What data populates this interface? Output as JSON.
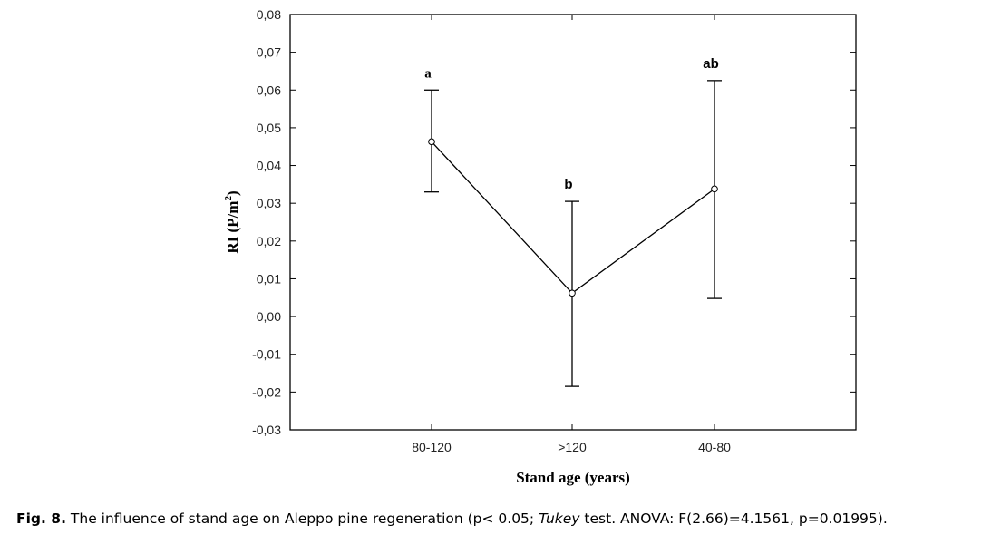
{
  "chart_data": {
    "type": "line",
    "title": "",
    "xlabel": "Stand age (years)",
    "ylabel": "RI (P/m",
    "ylabel_sup": "2",
    "ylabel_end": ")",
    "categories": [
      "80-120",
      ">120",
      "40-80"
    ],
    "values": [
      0.0463,
      0.0062,
      0.0338
    ],
    "error_low": [
      0.033,
      -0.0185,
      0.0048
    ],
    "error_high": [
      0.06,
      0.0305,
      0.0625
    ],
    "group_letters": [
      "a",
      "b",
      "ab"
    ],
    "ylim": [
      -0.03,
      0.08
    ],
    "yticks": [
      "-0,03",
      "-0,02",
      "-0,01",
      "0,00",
      "0,01",
      "0,02",
      "0,03",
      "0,04",
      "0,05",
      "0,06",
      "0,07",
      "0,08"
    ],
    "grid": false,
    "color": "#000000"
  },
  "caption": {
    "label": "Fig. 8.",
    "text1": " The influence of stand age on Aleppo pine regeneration (p< 0.05; ",
    "italic": "Tukey",
    "text2": " test. ANOVA: F(2.66)=4.1561, p=0.01995)."
  }
}
